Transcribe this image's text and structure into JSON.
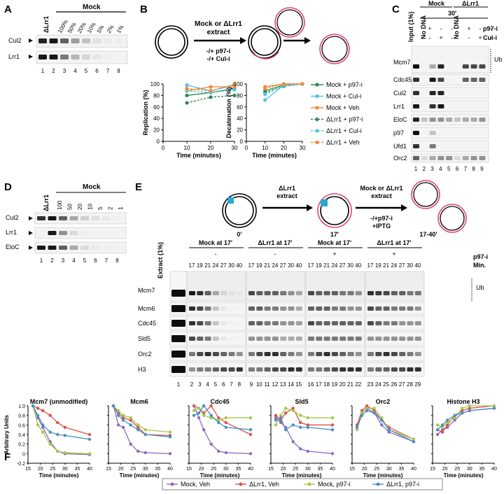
{
  "panels": {
    "A": "A",
    "B": "B",
    "C": "C",
    "D": "D",
    "E": "E",
    "F": "F"
  },
  "panelA": {
    "lrr1_header": "ΔLrr1",
    "mock_header": "Mock",
    "lanes_pct": [
      "100%",
      "50%",
      "20%",
      "10%",
      "5%",
      "2%",
      "1%"
    ],
    "rows": [
      "Cul2",
      "Lrr1"
    ],
    "lane_numbers": [
      "1",
      "2",
      "3",
      "4",
      "5",
      "6",
      "7",
      "8"
    ]
  },
  "panelB": {
    "extract_line1": "Mock or ΔLrr1",
    "extract_line2": "extract",
    "inhib_line1": "-/+ p97-i",
    "inhib_line2": "-/+ Cul-i",
    "rep_ylabel": "Replication (%)",
    "dec_ylabel": "Decatenation (%)",
    "xlabel": "Time (minutes)",
    "yticks": [
      "0",
      "20",
      "40",
      "60",
      "80",
      "100"
    ],
    "xticks": [
      "0",
      "10",
      "20",
      "30"
    ],
    "legend": [
      "Mock + p97-i",
      "Mock + Cul-i",
      "Mock + Veh",
      "ΔLrr1 + p97-i",
      "ΔLrr1 + Cul-i",
      "ΔLrr1 + Veh"
    ],
    "colors": {
      "green": "#2e8b57",
      "cyan": "#5bc0de",
      "orange": "#f08a3c"
    }
  },
  "panelC": {
    "input_label": "Input (1%)",
    "nodna1": "No DNA",
    "nodna2": "No DNA",
    "mock": "Mock",
    "lrr1": "ΔLrr1",
    "time": "30'",
    "p97_row": [
      "+",
      "-",
      "-"
    ],
    "cul_row": [
      "-",
      "+",
      "-"
    ],
    "p97_row2": [
      "+",
      "-",
      "-"
    ],
    "cul_row2": [
      "-",
      "+",
      "-"
    ],
    "p97_label": "p97-i",
    "cul_label": "Cul-i",
    "ub": "Ub",
    "rows": [
      "Mcm7",
      "Cdc45",
      "Cul2",
      "Lrr1",
      "EloC",
      "p97",
      "Ufd1",
      "Orc2"
    ],
    "lane_numbers": [
      "1",
      "2",
      "3",
      "4",
      "5",
      "6",
      "7",
      "8",
      "9"
    ]
  },
  "panelD": {
    "lrr1_header": "ΔLrr1",
    "mock_header": "Mock",
    "lanes": [
      "100",
      "50",
      "20",
      "10",
      "5",
      "2",
      "1"
    ],
    "rows": [
      "Cul2",
      "Lrr1",
      "EloC"
    ],
    "lane_numbers": [
      "1",
      "2",
      "3",
      "4",
      "5",
      "6",
      "7",
      "8"
    ]
  },
  "panelE": {
    "extract_line1": "ΔLrr1",
    "extract_line2": "extract",
    "extract2_line1": "Mock or ΔLrr1",
    "extract2_line2": "extract",
    "inhib_line1": "-/+p97-i",
    "inhib_line2": "+IPTG",
    "t0": "0'",
    "t17": "17'",
    "t17_40": "17-40'",
    "extract_label": "Extract (1%)",
    "groups": [
      {
        "title": "Mock at 17'",
        "sign": "-"
      },
      {
        "title": "ΔLrr1 at 17'",
        "sign": "-"
      },
      {
        "title": "Mock at 17'",
        "sign": "+"
      },
      {
        "title": "ΔLrr1 at 17'",
        "sign": "+"
      }
    ],
    "p97_label": "p97-i",
    "min_label": "Min.",
    "mins": [
      "17",
      "19",
      "21",
      "24",
      "27",
      "30",
      "40"
    ],
    "rows": [
      "Mcm7",
      "Mcm6",
      "Cdc45",
      "Sld5",
      "Orc2",
      "H3"
    ],
    "ub": "Ub",
    "lane_numbers": [
      "1",
      "2",
      "3",
      "4",
      "5",
      "6",
      "7",
      "8",
      "9",
      "10",
      "11",
      "12",
      "13",
      "14",
      "15",
      "16",
      "17",
      "18",
      "19",
      "20",
      "21",
      "22",
      "23",
      "24",
      "25",
      "26",
      "27",
      "28",
      "29"
    ]
  },
  "chart_data": [
    {
      "type": "line",
      "title": "Mcm7 (unmodified)",
      "xlabel": "Time (minutes)",
      "ylabel": "Arbitrary Units",
      "xlim": [
        15,
        40
      ],
      "ylim": [
        -0.2,
        1.0
      ],
      "yticks": [
        "-0.2",
        "0",
        "0.2",
        "0.4",
        "0.6",
        "0.8",
        "1.0"
      ],
      "series": [
        {
          "name": "Mock, Veh",
          "x": [
            17,
            19,
            21,
            24,
            27,
            30,
            40
          ],
          "y": [
            1.0,
            0.75,
            0.55,
            0.25,
            0.05,
            0.0,
            -0.02
          ]
        },
        {
          "name": "ΔLrr1, Veh",
          "x": [
            17,
            19,
            21,
            24,
            27,
            30,
            40
          ],
          "y": [
            1.0,
            0.95,
            0.9,
            0.8,
            0.65,
            0.55,
            0.4
          ]
        },
        {
          "name": "Mock, p97-i",
          "x": [
            17,
            19,
            21,
            24,
            27,
            30,
            40
          ],
          "y": [
            1.0,
            0.6,
            0.45,
            0.2,
            0.05,
            0.02,
            0.0
          ]
        },
        {
          "name": "ΔLrr1, p97-i",
          "x": [
            17,
            19,
            21,
            24,
            27,
            30,
            40
          ],
          "y": [
            1.0,
            0.8,
            0.6,
            0.45,
            0.4,
            0.38,
            0.3
          ]
        }
      ]
    },
    {
      "type": "line",
      "title": "Mcm6",
      "xlabel": "Time (minutes)",
      "xlim": [
        15,
        40
      ],
      "ylim": [
        -0.2,
        1.0
      ],
      "series": [
        {
          "name": "Mock, Veh",
          "x": [
            17,
            19,
            21,
            24,
            27,
            30,
            40
          ],
          "y": [
            1.0,
            0.6,
            0.55,
            0.2,
            0.05,
            0.02,
            0.0
          ]
        },
        {
          "name": "ΔLrr1, Veh",
          "x": [
            17,
            19,
            21,
            24,
            27,
            30,
            40
          ],
          "y": [
            1.0,
            0.85,
            0.75,
            0.7,
            0.55,
            0.4,
            0.38
          ]
        },
        {
          "name": "Mock, p97-i",
          "x": [
            17,
            19,
            21,
            24,
            27,
            30,
            40
          ],
          "y": [
            1.0,
            0.9,
            0.8,
            0.75,
            0.6,
            0.5,
            0.45
          ]
        },
        {
          "name": "ΔLrr1, p97-i",
          "x": [
            17,
            19,
            21,
            24,
            27,
            30,
            40
          ],
          "y": [
            1.0,
            0.8,
            0.7,
            0.6,
            0.5,
            0.4,
            0.35
          ]
        }
      ]
    },
    {
      "type": "line",
      "title": "Cdc45",
      "xlabel": "Time (minutes)",
      "xlim": [
        15,
        40
      ],
      "ylim": [
        -0.2,
        1.0
      ],
      "series": [
        {
          "name": "Mock, Veh",
          "x": [
            17,
            19,
            21,
            24,
            27,
            30,
            40
          ],
          "y": [
            1.0,
            0.75,
            0.5,
            0.2,
            0.05,
            0.02,
            0.0
          ]
        },
        {
          "name": "ΔLrr1, Veh",
          "x": [
            17,
            19,
            21,
            24,
            27,
            30,
            40
          ],
          "y": [
            1.0,
            0.95,
            0.85,
            1.0,
            0.75,
            0.65,
            0.4
          ]
        },
        {
          "name": "Mock, p97-i",
          "x": [
            17,
            19,
            21,
            24,
            27,
            30,
            40
          ],
          "y": [
            0.9,
            0.95,
            0.8,
            0.75,
            0.7,
            0.75,
            0.75
          ]
        },
        {
          "name": "ΔLrr1, p97-i",
          "x": [
            17,
            19,
            21,
            24,
            27,
            30,
            40
          ],
          "y": [
            0.8,
            0.85,
            1.0,
            0.8,
            0.65,
            0.55,
            0.5
          ]
        }
      ]
    },
    {
      "type": "line",
      "title": "Sld5",
      "xlabel": "Time (minutes)",
      "xlim": [
        15,
        40
      ],
      "ylim": [
        -0.2,
        1.0
      ],
      "series": [
        {
          "name": "Mock, Veh",
          "x": [
            17,
            19,
            21,
            24,
            27,
            30,
            40
          ],
          "y": [
            0.75,
            0.65,
            0.55,
            0.25,
            0.1,
            0.05,
            0.0
          ]
        },
        {
          "name": "ΔLrr1, Veh",
          "x": [
            17,
            19,
            21,
            24,
            27,
            30,
            40
          ],
          "y": [
            0.8,
            0.7,
            0.85,
            0.95,
            0.65,
            0.6,
            0.6
          ]
        },
        {
          "name": "Mock, p97-i",
          "x": [
            17,
            19,
            21,
            24,
            27,
            30,
            40
          ],
          "y": [
            0.6,
            0.8,
            0.95,
            0.9,
            0.8,
            0.75,
            0.75
          ]
        },
        {
          "name": "ΔLrr1, p97-i",
          "x": [
            17,
            19,
            21,
            24,
            27,
            30,
            40
          ],
          "y": [
            0.7,
            0.75,
            0.5,
            0.6,
            0.55,
            0.55,
            0.5
          ]
        }
      ]
    },
    {
      "type": "line",
      "title": "Orc2",
      "xlabel": "Time (minutes)",
      "xlim": [
        15,
        40
      ],
      "ylim": [
        -0.2,
        1.0
      ],
      "series": [
        {
          "name": "Mock, Veh",
          "x": [
            17,
            19,
            21,
            24,
            27,
            30,
            40
          ],
          "y": [
            0.55,
            0.85,
            0.95,
            0.85,
            0.6,
            0.45,
            0.25
          ]
        },
        {
          "name": "ΔLrr1, Veh",
          "x": [
            17,
            19,
            21,
            24,
            27,
            30,
            40
          ],
          "y": [
            0.6,
            0.9,
            1.0,
            0.9,
            0.7,
            0.55,
            0.3
          ]
        },
        {
          "name": "Mock, p97-i",
          "x": [
            17,
            19,
            21,
            24,
            27,
            30,
            40
          ],
          "y": [
            0.5,
            0.85,
            0.95,
            0.95,
            0.75,
            0.5,
            0.3
          ]
        },
        {
          "name": "ΔLrr1, p97-i",
          "x": [
            17,
            19,
            21,
            24,
            27,
            30,
            40
          ],
          "y": [
            0.55,
            0.8,
            0.9,
            0.85,
            0.7,
            0.5,
            0.25
          ]
        }
      ]
    },
    {
      "type": "line",
      "title": "Histone H3",
      "xlabel": "Time (minutes)",
      "xlim": [
        15,
        40
      ],
      "ylim": [
        -0.2,
        1.0
      ],
      "series": [
        {
          "name": "Mock, Veh",
          "x": [
            17,
            19,
            21,
            24,
            27,
            30,
            40
          ],
          "y": [
            0.4,
            0.5,
            0.55,
            0.7,
            0.85,
            0.9,
            0.95
          ]
        },
        {
          "name": "ΔLrr1, Veh",
          "x": [
            17,
            19,
            21,
            24,
            27,
            30,
            40
          ],
          "y": [
            0.5,
            0.45,
            0.6,
            0.8,
            0.9,
            0.95,
            1.0
          ]
        },
        {
          "name": "Mock, p97-i",
          "x": [
            17,
            19,
            21,
            24,
            27,
            30,
            40
          ],
          "y": [
            0.6,
            0.55,
            0.65,
            0.75,
            0.95,
            1.0,
            1.0
          ]
        },
        {
          "name": "ΔLrr1, p97-i",
          "x": [
            17,
            19,
            21,
            24,
            27,
            30,
            40
          ],
          "y": [
            0.5,
            0.6,
            0.7,
            0.8,
            0.85,
            0.9,
            0.95
          ]
        }
      ]
    }
  ],
  "panelF_legend": [
    {
      "name": "Mock, Veh",
      "color": "#8e6bbf"
    },
    {
      "name": "ΔLrr1, Veh",
      "color": "#d9534f"
    },
    {
      "name": "Mock, p97-i",
      "color": "#a5c94a"
    },
    {
      "name": "ΔLrr1, p97-i",
      "color": "#4a8fc4"
    }
  ]
}
